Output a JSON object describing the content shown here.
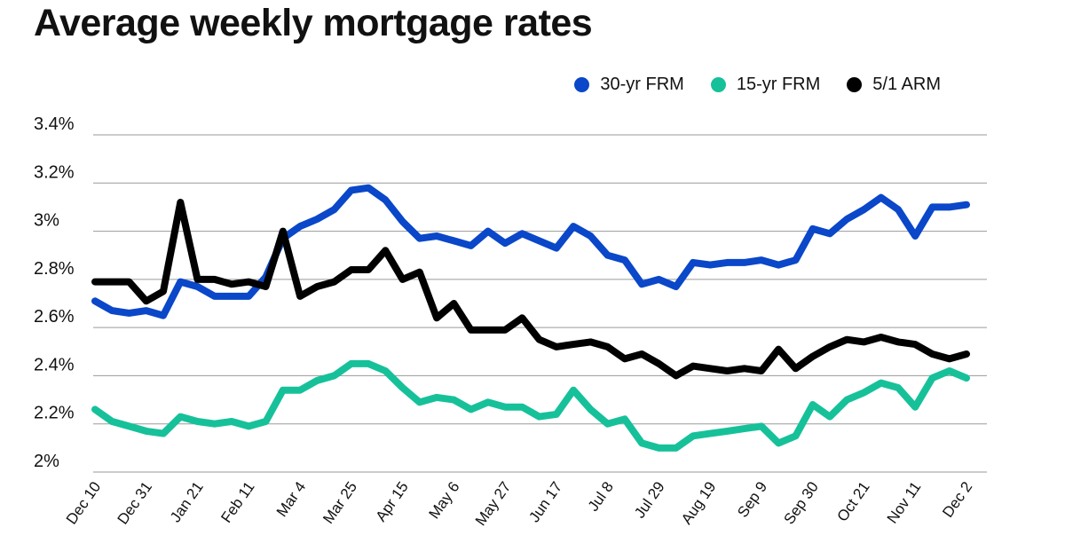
{
  "chart_data": {
    "type": "line",
    "title": "Average weekly mortgage rates",
    "xlabel": "",
    "ylabel": "",
    "ylim": [
      2.0,
      3.4
    ],
    "yticks": [
      {
        "value": 2.0,
        "label": "2%"
      },
      {
        "value": 2.2,
        "label": "2.2%"
      },
      {
        "value": 2.4,
        "label": "2.4%"
      },
      {
        "value": 2.6,
        "label": "2.6%"
      },
      {
        "value": 2.8,
        "label": "2.8%"
      },
      {
        "value": 3.0,
        "label": "3%"
      },
      {
        "value": 3.2,
        "label": "3.2%"
      },
      {
        "value": 3.4,
        "label": "3.4%"
      }
    ],
    "grid": true,
    "legend_position": "top-right",
    "x_count": 52,
    "xticks": [
      {
        "index": 0,
        "label": "Dec 10"
      },
      {
        "index": 3,
        "label": "Dec 31"
      },
      {
        "index": 6,
        "label": "Jan 21"
      },
      {
        "index": 9,
        "label": "Feb 11"
      },
      {
        "index": 12,
        "label": "Mar 4"
      },
      {
        "index": 15,
        "label": "Mar 25"
      },
      {
        "index": 18,
        "label": "Apr 15"
      },
      {
        "index": 21,
        "label": "May 6"
      },
      {
        "index": 24,
        "label": "May 27"
      },
      {
        "index": 27,
        "label": "Jun 17"
      },
      {
        "index": 30,
        "label": "Jul 8"
      },
      {
        "index": 33,
        "label": "Jul 29"
      },
      {
        "index": 36,
        "label": "Aug 19"
      },
      {
        "index": 39,
        "label": "Sep 9"
      },
      {
        "index": 42,
        "label": "Sep 30"
      },
      {
        "index": 45,
        "label": "Oct 21"
      },
      {
        "index": 48,
        "label": "Nov 11"
      },
      {
        "index": 51,
        "label": "Dec 2"
      }
    ],
    "series": [
      {
        "name": "30-yr FRM",
        "color": "#0a47c9",
        "values": [
          2.71,
          2.67,
          2.66,
          2.67,
          2.65,
          2.79,
          2.77,
          2.73,
          2.73,
          2.73,
          2.81,
          2.97,
          3.02,
          3.05,
          3.09,
          3.17,
          3.18,
          3.13,
          3.04,
          2.97,
          2.98,
          2.96,
          2.94,
          3.0,
          2.95,
          2.99,
          2.96,
          2.93,
          3.02,
          2.98,
          2.9,
          2.88,
          2.78,
          2.8,
          2.77,
          2.87,
          2.86,
          2.87,
          2.87,
          2.88,
          2.86,
          2.88,
          3.01,
          2.99,
          3.05,
          3.09,
          3.14,
          3.09,
          2.98,
          3.1,
          3.1,
          3.11
        ]
      },
      {
        "name": "15-yr FRM",
        "color": "#16c19a",
        "values": [
          2.26,
          2.21,
          2.19,
          2.17,
          2.16,
          2.23,
          2.21,
          2.2,
          2.21,
          2.19,
          2.21,
          2.34,
          2.34,
          2.38,
          2.4,
          2.45,
          2.45,
          2.42,
          2.35,
          2.29,
          2.31,
          2.3,
          2.26,
          2.29,
          2.27,
          2.27,
          2.23,
          2.24,
          2.34,
          2.26,
          2.2,
          2.22,
          2.12,
          2.1,
          2.1,
          2.15,
          2.16,
          2.17,
          2.18,
          2.19,
          2.12,
          2.15,
          2.28,
          2.23,
          2.3,
          2.33,
          2.37,
          2.35,
          2.27,
          2.39,
          2.42,
          2.39
        ]
      },
      {
        "name": "5/1 ARM",
        "color": "#000000",
        "values": [
          2.79,
          2.79,
          2.79,
          2.71,
          2.75,
          3.12,
          2.8,
          2.8,
          2.78,
          2.79,
          2.77,
          3.0,
          2.73,
          2.77,
          2.79,
          2.84,
          2.84,
          2.92,
          2.8,
          2.83,
          2.64,
          2.7,
          2.59,
          2.59,
          2.59,
          2.64,
          2.55,
          2.52,
          2.53,
          2.54,
          2.52,
          2.47,
          2.49,
          2.45,
          2.4,
          2.44,
          2.43,
          2.42,
          2.43,
          2.42,
          2.51,
          2.43,
          2.48,
          2.52,
          2.55,
          2.54,
          2.56,
          2.54,
          2.53,
          2.49,
          2.47,
          2.49
        ]
      }
    ]
  }
}
